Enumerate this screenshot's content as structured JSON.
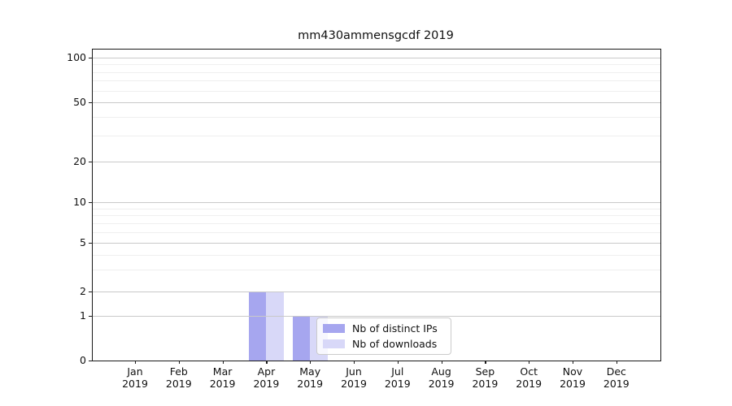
{
  "chart_data": {
    "type": "bar",
    "title": "mm430ammensgcdf 2019",
    "categories": [
      "Jan",
      "Feb",
      "Mar",
      "Apr",
      "May",
      "Jun",
      "Jul",
      "Aug",
      "Sep",
      "Oct",
      "Nov",
      "Dec"
    ],
    "year_label": "2019",
    "series": [
      {
        "name": "Nb of distinct IPs",
        "color": "#a6a6ef",
        "values": [
          0,
          0,
          0,
          2,
          1,
          0,
          0,
          0,
          0,
          0,
          0,
          0
        ]
      },
      {
        "name": "Nb of downloads",
        "color": "#d8d8f8",
        "values": [
          0,
          0,
          0,
          2,
          1,
          0,
          0,
          0,
          0,
          0,
          0,
          0
        ]
      }
    ],
    "yscale": "symlog",
    "yticks": [
      0,
      1,
      2,
      5,
      10,
      20,
      50,
      100
    ],
    "ytick_labels": [
      "0",
      "1",
      "2",
      "5",
      "10",
      "20",
      "50",
      "100"
    ],
    "ylim": [
      0,
      113
    ],
    "grid": "horizontal-major-and-minor",
    "legend_position": "lower-center"
  },
  "colors": {
    "bar_distinct_ips": "#a6a6ef",
    "bar_downloads": "#d8d8f8",
    "grid_major": "#c9c9c9",
    "grid_minor": "#efefef",
    "spine": "#1a1a1a",
    "text": "#111111",
    "legend_border": "#cbcbcb",
    "legend_background": "rgba(255,255,255,0.8)"
  }
}
